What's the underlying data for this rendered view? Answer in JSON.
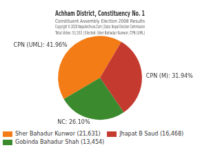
{
  "chart_data": {
    "type": "pie",
    "title": "Achham District, Constituency No. 1",
    "subtitle": [
      "Constituent Assembly Election 2008 Results",
      "Copyright © 2020 NepalArchives.Com | Data: Nepal Election Commission",
      "Total Votes: 51,553 | Elected: Sher Bahadur Kunwor, CPN (UML)"
    ],
    "categories": [
      "CPN (UML)",
      "CPN (M)",
      "NC"
    ],
    "values": [
      41.96,
      31.94,
      26.1
    ],
    "value_labels": [
      "CPN (UML): 41.96%",
      "CPN (M): 31.94%",
      "NC: 26.10%"
    ],
    "data_labels": true,
    "colors": [
      "#f47c16",
      "#c53a2f",
      "#3c8a2e"
    ],
    "legend_entries": [
      "Sher Bahadur Kunwor (21,631)",
      "Jhapat B Saud (16,468)",
      "Gobinda Bahadur Shah (13,454)"
    ],
    "legend": "bottom"
  }
}
